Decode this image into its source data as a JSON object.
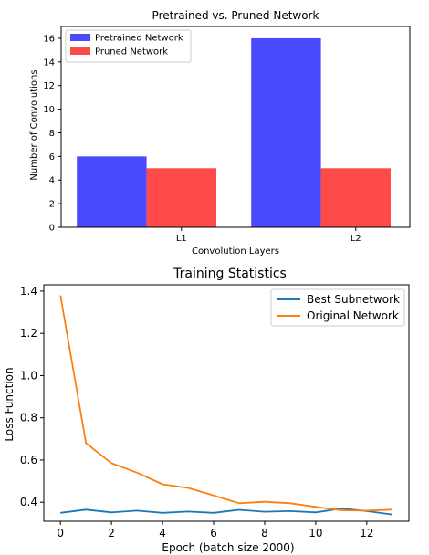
{
  "chart_data": [
    {
      "type": "bar",
      "title": "Pretrained vs. Pruned Network",
      "xlabel": "Convolution Layers",
      "ylabel": "Number of Convolutions",
      "categories": [
        "L1",
        "L2"
      ],
      "series": [
        {
          "name": "Pretrained Network",
          "values": [
            6,
            16
          ],
          "color": "#4a4aff"
        },
        {
          "name": "Pruned Network",
          "values": [
            5,
            5
          ],
          "color": "#ff4a4a"
        }
      ],
      "ylim": [
        0,
        17
      ],
      "yticks": [
        0,
        2,
        4,
        6,
        8,
        10,
        12,
        14,
        16
      ],
      "legend": "top-left",
      "grid": false
    },
    {
      "type": "line",
      "title": "Training Statistics",
      "xlabel": "Epoch (batch size 2000)",
      "ylabel": "Loss Function",
      "x": [
        0,
        1,
        2,
        3,
        4,
        5,
        6,
        7,
        8,
        9,
        10,
        11,
        12,
        13
      ],
      "series": [
        {
          "name": "Best Subnetwork",
          "color": "#1f77b4",
          "values": [
            0.35,
            0.365,
            0.352,
            0.36,
            0.35,
            0.356,
            0.35,
            0.364,
            0.355,
            0.358,
            0.352,
            0.37,
            0.358,
            0.342
          ]
        },
        {
          "name": "Original Network",
          "color": "#ff7f0e",
          "values": [
            1.38,
            0.68,
            0.585,
            0.54,
            0.485,
            0.468,
            0.432,
            0.395,
            0.402,
            0.395,
            0.378,
            0.362,
            0.36,
            0.365
          ]
        }
      ],
      "xlim": [
        -0.65,
        13.65
      ],
      "ylim": [
        0.31,
        1.43
      ],
      "xticks": [
        0,
        2,
        4,
        6,
        8,
        10,
        12
      ],
      "yticks": [
        0.4,
        0.6,
        0.8,
        1.0,
        1.2,
        1.4
      ],
      "legend": "top-right",
      "grid": false
    }
  ]
}
